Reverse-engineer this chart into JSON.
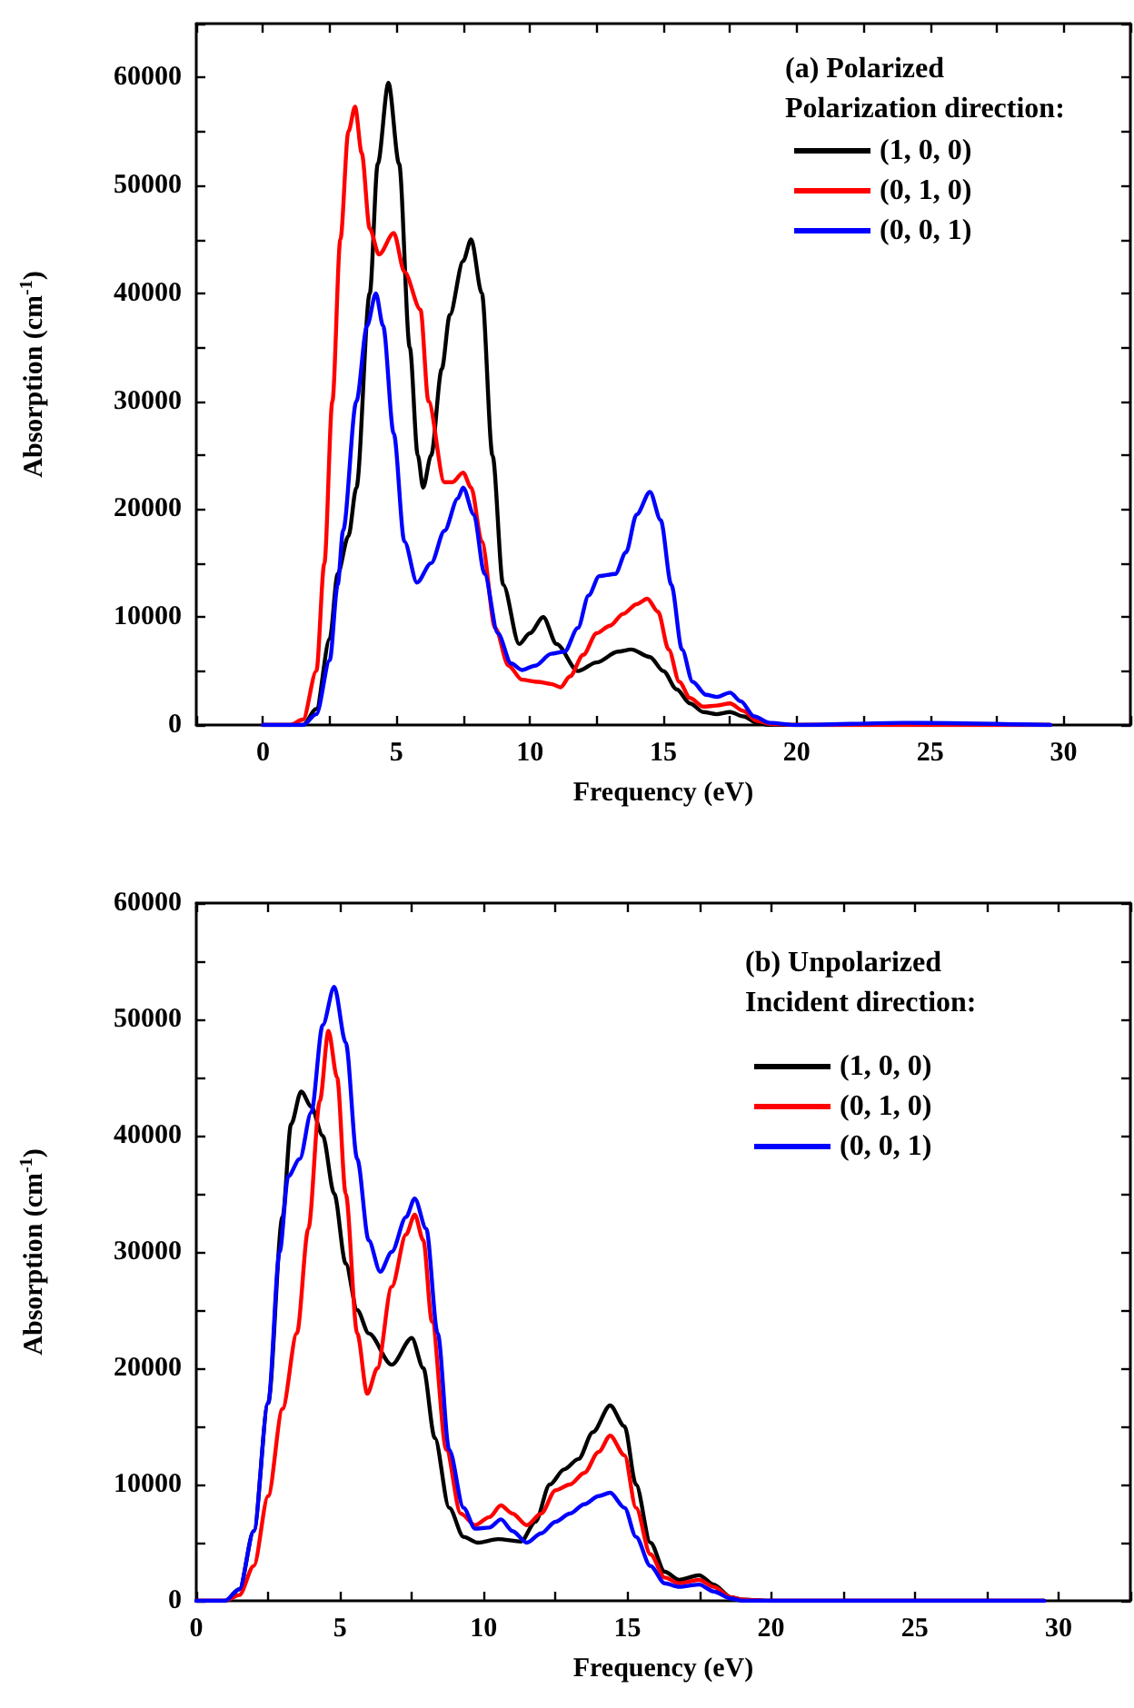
{
  "chart_data": [
    {
      "type": "line",
      "title": "(a) Polarized",
      "legend_title": "Polarization direction:",
      "xlabel": "Frequency (eV)",
      "ylabel": "Absorption (cm$^{-1}$)",
      "xlim": [
        -2.5,
        32.5
      ],
      "ylim": [
        0,
        65000
      ],
      "xticks": [
        {
          "value": -2.5,
          "label": null
        },
        0,
        {
          "value": 2.5,
          "label": null
        },
        5,
        {
          "value": 7.5,
          "label": null
        },
        10,
        {
          "value": 12.5,
          "label": null
        },
        15,
        {
          "value": 17.5,
          "label": null
        },
        20,
        {
          "value": 22.5,
          "label": null
        },
        25,
        {
          "value": 27.5,
          "label": null
        },
        30,
        {
          "value": 32.5,
          "label": null
        }
      ],
      "yticks": [
        0,
        {
          "value": 5000,
          "label": null
        },
        10000,
        {
          "value": 15000,
          "label": null
        },
        20000,
        {
          "value": 25000,
          "label": null
        },
        30000,
        {
          "value": 35000,
          "label": null
        },
        40000,
        {
          "value": 45000,
          "label": null
        },
        50000,
        {
          "value": 55000,
          "label": null
        },
        60000,
        {
          "value": 65000,
          "label": null
        }
      ],
      "grid": false,
      "legend": "top right",
      "marker": "none",
      "line_style": "solid",
      "series": [
        {
          "name": "(1, 0, 0)",
          "color": "#000000",
          "x": [
            0,
            1.5,
            2,
            2.5,
            2.8,
            3.2,
            3.5,
            4,
            4.3,
            4.7,
            5.1,
            5.5,
            5.8,
            6,
            6.3,
            6.7,
            7,
            7.5,
            7.8,
            8.2,
            8.6,
            9,
            9.6,
            10,
            10.5,
            11,
            11.8,
            12.5,
            13.3,
            13.8,
            14.5,
            15,
            15.5,
            16,
            16.5,
            17,
            17.5,
            18,
            18.5,
            19,
            20,
            29.5
          ],
          "values": [
            0,
            0,
            1500,
            8000,
            14000,
            17500,
            22000,
            40000,
            52000,
            59500,
            52000,
            35000,
            25000,
            22000,
            25000,
            33000,
            38000,
            43000,
            45000,
            40000,
            25000,
            13000,
            7500,
            8500,
            10000,
            7500,
            5000,
            5800,
            6800,
            7000,
            6300,
            5000,
            3300,
            2000,
            1200,
            1000,
            1200,
            800,
            200,
            0,
            0,
            0
          ]
        },
        {
          "name": "(0, 1, 0)",
          "color": "#ff0000",
          "x": [
            0,
            1,
            1.5,
            2,
            2.3,
            2.6,
            2.9,
            3.2,
            3.45,
            3.7,
            4,
            4.35,
            4.9,
            5.3,
            5.9,
            6.2,
            6.8,
            7.1,
            7.5,
            7.8,
            8.2,
            8.7,
            9.2,
            9.7,
            10.3,
            10.8,
            11.15,
            11.5,
            12,
            12.5,
            13,
            13.5,
            14,
            14.4,
            14.8,
            15.2,
            15.6,
            16,
            16.5,
            17,
            17.5,
            18,
            18.5,
            19,
            20,
            29.5
          ],
          "values": [
            0,
            0,
            500,
            5000,
            15000,
            30000,
            45000,
            55000,
            57300,
            53000,
            46000,
            43600,
            45600,
            42000,
            38500,
            30000,
            22500,
            22500,
            23400,
            22000,
            17000,
            9000,
            5500,
            4200,
            4000,
            3800,
            3500,
            4500,
            6500,
            8500,
            9200,
            10300,
            11200,
            11700,
            10500,
            7000,
            4000,
            2500,
            1700,
            1800,
            2000,
            1300,
            400,
            100,
            0,
            0
          ]
        },
        {
          "name": "(0, 0, 1)",
          "color": "#0000ff",
          "x": [
            0,
            1.5,
            2,
            2.5,
            2.8,
            3,
            3.5,
            3.9,
            4.23,
            4.5,
            4.9,
            5.3,
            5.77,
            6.3,
            6.8,
            7.3,
            7.5,
            7.9,
            8.3,
            8.8,
            9.3,
            9.7,
            10.2,
            10.8,
            11.3,
            11.8,
            12.2,
            12.6,
            13.2,
            13.6,
            14,
            14.5,
            14.9,
            15.3,
            15.7,
            16.1,
            16.6,
            17,
            17.5,
            17.9,
            18.4,
            19,
            20,
            24,
            29.5
          ],
          "values": [
            0,
            0,
            1000,
            6000,
            13000,
            18000,
            30000,
            37000,
            40000,
            37000,
            27000,
            17000,
            13200,
            15000,
            18000,
            21000,
            22000,
            19500,
            14000,
            8500,
            5700,
            5100,
            5500,
            6600,
            6800,
            9000,
            12000,
            13800,
            14000,
            16000,
            19500,
            21600,
            19000,
            13000,
            7000,
            4000,
            2800,
            2600,
            3000,
            2200,
            800,
            200,
            0,
            200,
            0
          ]
        }
      ]
    },
    {
      "type": "line",
      "title": "(b) Unpolarized",
      "legend_title": "Incident direction:",
      "xlabel": "Frequency (eV)",
      "ylabel": "Absorption (cm$^{-1}$)",
      "xlim": [
        0,
        32.5
      ],
      "ylim": [
        0,
        60000
      ],
      "xticks": [
        0,
        {
          "value": 2.5,
          "label": null
        },
        5,
        {
          "value": 7.5,
          "label": null
        },
        10,
        {
          "value": 12.5,
          "label": null
        },
        15,
        {
          "value": 17.5,
          "label": null
        },
        20,
        {
          "value": 22.5,
          "label": null
        },
        25,
        {
          "value": 27.5,
          "label": null
        },
        30,
        {
          "value": 32.5,
          "label": null
        }
      ],
      "yticks": [
        0,
        {
          "value": 5000,
          "label": null
        },
        10000,
        {
          "value": 15000,
          "label": null
        },
        20000,
        {
          "value": 25000,
          "label": null
        },
        30000,
        {
          "value": 35000,
          "label": null
        },
        40000,
        {
          "value": 45000,
          "label": null
        },
        50000,
        {
          "value": 55000,
          "label": null
        },
        60000
      ],
      "grid": false,
      "legend": "top right",
      "marker": "none",
      "line_style": "solid",
      "series": [
        {
          "name": "(1, 0, 0)",
          "color": "#000000",
          "x": [
            0,
            1,
            1.5,
            2,
            2.5,
            3,
            3.3,
            3.65,
            4,
            4.4,
            4.8,
            5.2,
            5.6,
            6,
            6.8,
            7.5,
            7.9,
            8.3,
            8.8,
            9.3,
            9.8,
            10.5,
            11.3,
            11.8,
            12.3,
            12.8,
            13.3,
            13.8,
            14.4,
            14.9,
            15.3,
            15.8,
            16.3,
            16.8,
            17.5,
            18,
            18.6,
            19,
            20,
            29.5
          ],
          "values": [
            0,
            0,
            1000,
            6000,
            17000,
            33000,
            41000,
            43800,
            42500,
            40000,
            35000,
            29000,
            25000,
            23000,
            20300,
            22600,
            20000,
            14000,
            8000,
            5500,
            5000,
            5300,
            5100,
            6800,
            10000,
            11300,
            12200,
            14500,
            16800,
            15000,
            10000,
            5000,
            2500,
            1800,
            2200,
            1400,
            300,
            100,
            0,
            0
          ]
        },
        {
          "name": "(0, 1, 0)",
          "color": "#ff0000",
          "x": [
            0,
            1,
            1.5,
            2,
            2.5,
            3,
            3.5,
            3.9,
            4.3,
            4.6,
            4.9,
            5.2,
            5.6,
            5.95,
            6.3,
            6.8,
            7.3,
            7.6,
            7.9,
            8.2,
            8.7,
            9.2,
            9.7,
            10.2,
            10.6,
            11,
            11.5,
            12,
            12.5,
            13,
            13.5,
            14,
            14.4,
            14.9,
            15.3,
            15.8,
            16.3,
            16.8,
            17.5,
            18,
            18.6,
            19,
            20,
            29.5
          ],
          "values": [
            0,
            0,
            500,
            3000,
            9000,
            16500,
            23000,
            32000,
            43000,
            49000,
            45000,
            35000,
            23000,
            17800,
            20000,
            27000,
            31500,
            33200,
            31000,
            24000,
            13000,
            7500,
            6500,
            7200,
            8200,
            7500,
            6500,
            7500,
            9500,
            10000,
            11000,
            12800,
            14200,
            12500,
            8000,
            4000,
            2000,
            1500,
            1800,
            1200,
            300,
            100,
            0,
            0
          ]
        },
        {
          "name": "(0, 0, 1)",
          "color": "#0000ff",
          "x": [
            0,
            1,
            1.5,
            2,
            2.5,
            2.9,
            3.2,
            3.6,
            4,
            4.4,
            4.8,
            5.2,
            5.6,
            6,
            6.4,
            6.8,
            7.3,
            7.6,
            8,
            8.4,
            8.8,
            9.3,
            9.7,
            10.2,
            10.6,
            11,
            11.5,
            12,
            12.5,
            13,
            13.5,
            14,
            14.4,
            14.9,
            15.3,
            15.8,
            16.3,
            16.8,
            17.5,
            18,
            18.6,
            19,
            20,
            29.5
          ],
          "values": [
            0,
            0,
            1000,
            6000,
            17000,
            30000,
            36500,
            38000,
            42000,
            49500,
            52800,
            48000,
            38000,
            31000,
            28300,
            30000,
            33000,
            34600,
            32000,
            23000,
            13000,
            8000,
            6200,
            6300,
            7000,
            6000,
            5000,
            5800,
            6800,
            7500,
            8300,
            9000,
            9300,
            8000,
            5500,
            3000,
            1500,
            1200,
            1400,
            800,
            200,
            0,
            0,
            0
          ]
        }
      ]
    }
  ]
}
